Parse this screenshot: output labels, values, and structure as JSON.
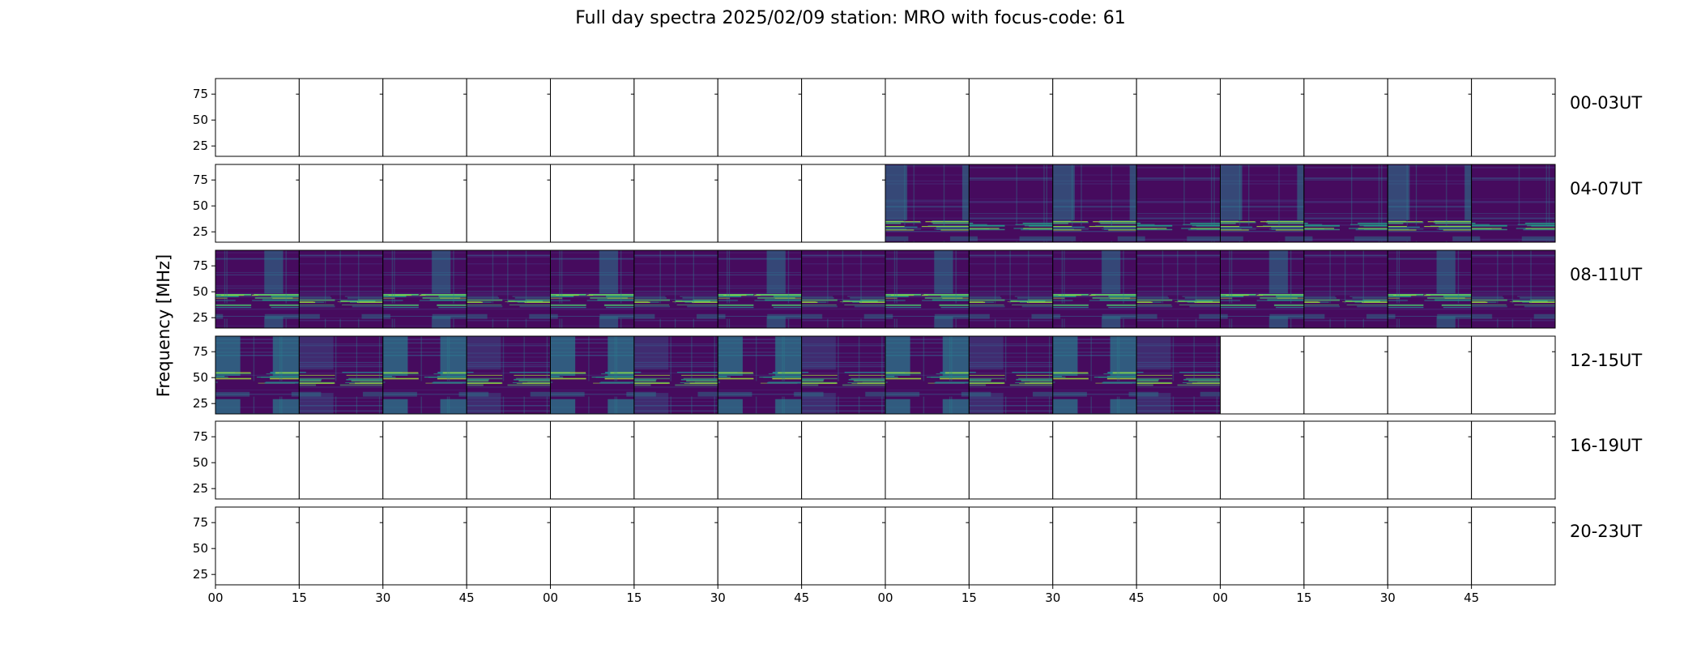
{
  "chart_data": {
    "type": "heatmap",
    "title": "Full day spectra 2025/02/09 station: MRO with focus-code: 61",
    "ylabel": "Frequency [MHz]",
    "xlabel": "",
    "ylim": [
      15,
      90
    ],
    "yticks": [
      25,
      50,
      75
    ],
    "x_tick_labels": [
      "00",
      "15",
      "30",
      "45",
      "00",
      "15",
      "30",
      "45",
      "00",
      "15",
      "30",
      "45",
      "00",
      "15",
      "30",
      "45"
    ],
    "colormap": "viridis",
    "rows": [
      {
        "label": "00-03UT",
        "panels": [
          0,
          0,
          0,
          0,
          0,
          0,
          0,
          0,
          0,
          0,
          0,
          0,
          0,
          0,
          0,
          0
        ]
      },
      {
        "label": "04-07UT",
        "panels": [
          0,
          0,
          0,
          0,
          0,
          0,
          0,
          0,
          1,
          1,
          1,
          1,
          1,
          1,
          1,
          1
        ]
      },
      {
        "label": "08-11UT",
        "panels": [
          1,
          1,
          1,
          1,
          1,
          1,
          1,
          1,
          1,
          1,
          1,
          1,
          1,
          1,
          1,
          1
        ]
      },
      {
        "label": "12-15UT",
        "panels": [
          1,
          1,
          1,
          1,
          1,
          1,
          1,
          1,
          1,
          1,
          1,
          1,
          0,
          0,
          0,
          0
        ]
      },
      {
        "label": "16-19UT",
        "panels": [
          0,
          0,
          0,
          0,
          0,
          0,
          0,
          0,
          0,
          0,
          0,
          0,
          0,
          0,
          0,
          0
        ]
      },
      {
        "label": "20-23UT",
        "panels": [
          0,
          0,
          0,
          0,
          0,
          0,
          0,
          0,
          0,
          0,
          0,
          0,
          0,
          0,
          0,
          0
        ]
      }
    ],
    "grid": false
  }
}
